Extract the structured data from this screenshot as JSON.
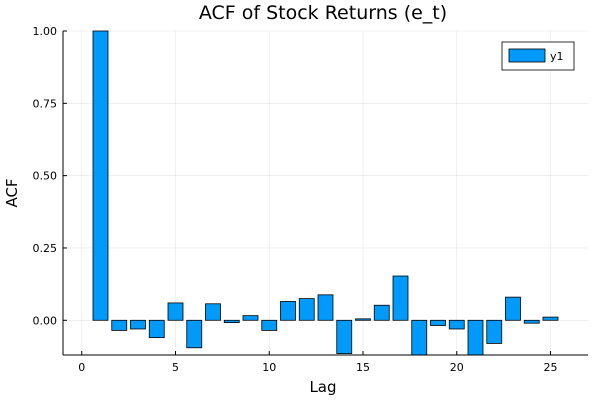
{
  "chart_data": {
    "type": "bar",
    "title": "ACF of Stock Returns (e_t)",
    "xlabel": "Lag",
    "ylabel": "ACF",
    "xlim": [
      -1,
      27
    ],
    "ylim": [
      -0.12,
      1.0
    ],
    "xticks": [
      0,
      5,
      10,
      15,
      20,
      25
    ],
    "xtick_labels": [
      "0",
      "5",
      "10",
      "15",
      "20",
      "25"
    ],
    "yticks": [
      0.0,
      0.25,
      0.5,
      0.75,
      1.0
    ],
    "ytick_labels": [
      "0.00",
      "0.25",
      "0.50",
      "0.75",
      "1.00"
    ],
    "grid": true,
    "legend_position": "top-right",
    "series": [
      {
        "name": "y1",
        "color": "#009AFA",
        "x": [
          1,
          2,
          3,
          4,
          5,
          6,
          7,
          8,
          9,
          10,
          11,
          12,
          13,
          14,
          15,
          16,
          17,
          18,
          19,
          20,
          21,
          22,
          23,
          24,
          25
        ],
        "values": [
          1.0,
          -0.035,
          -0.03,
          -0.06,
          0.06,
          -0.095,
          0.057,
          -0.008,
          0.016,
          -0.035,
          0.065,
          0.075,
          0.088,
          -0.115,
          0.005,
          0.052,
          0.153,
          -0.13,
          -0.018,
          -0.03,
          -0.13,
          -0.08,
          0.08,
          -0.01,
          0.011
        ]
      }
    ]
  }
}
